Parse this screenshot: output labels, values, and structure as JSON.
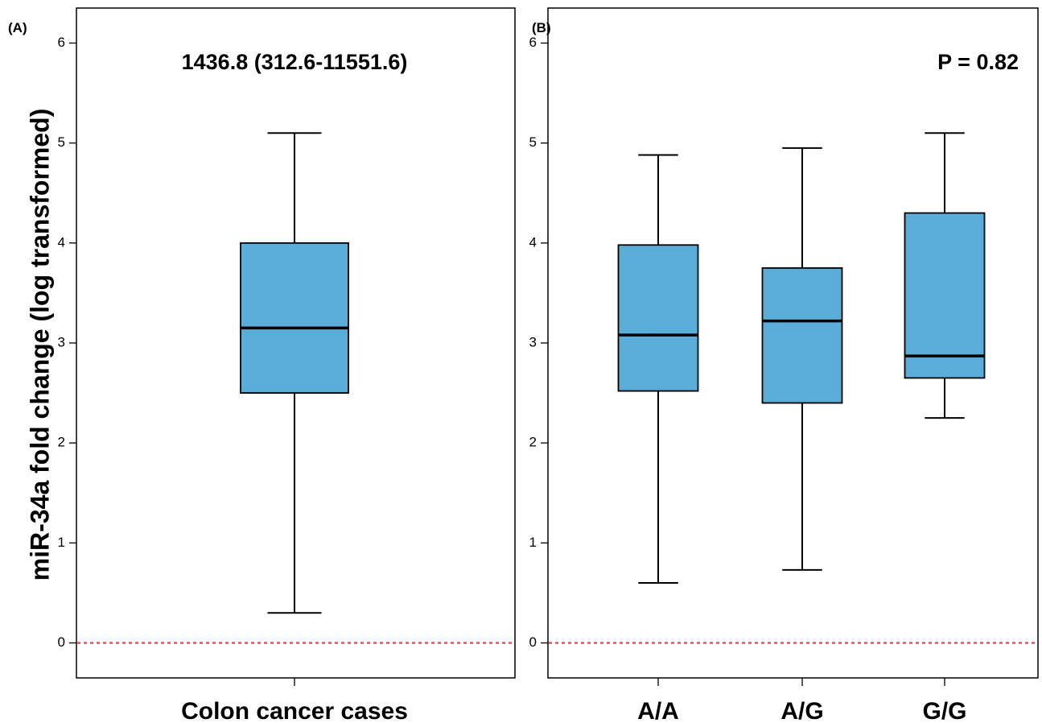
{
  "y_axis_label": "miR-34a fold change (log transformed)",
  "chart_data": [
    {
      "type": "boxplot",
      "panel_label": "(A)",
      "annotation": "1436.8 (312.6-11551.6)",
      "categories": [
        "Colon cancer cases"
      ],
      "boxes": [
        {
          "category": "Colon cancer cases",
          "whisker_low": 0.3,
          "q1": 2.5,
          "median": 3.15,
          "q3": 4.0,
          "whisker_high": 5.1
        }
      ],
      "ylim": [
        -0.35,
        6.35
      ],
      "yticks": [
        0,
        1,
        2,
        3,
        4,
        5,
        6
      ],
      "reference_line": {
        "y": 0,
        "style": "dashed",
        "color": "#e8545a"
      },
      "box_color": "#5badd9"
    },
    {
      "type": "boxplot",
      "panel_label": "(B)",
      "annotation": "P = 0.82",
      "categories": [
        "A/A",
        "A/G",
        "G/G"
      ],
      "boxes": [
        {
          "category": "A/A",
          "whisker_low": 0.6,
          "q1": 2.52,
          "median": 3.08,
          "q3": 3.98,
          "whisker_high": 4.88
        },
        {
          "category": "A/G",
          "whisker_low": 0.73,
          "q1": 2.4,
          "median": 3.22,
          "q3": 3.75,
          "whisker_high": 4.95
        },
        {
          "category": "G/G",
          "whisker_low": 2.25,
          "q1": 2.65,
          "median": 2.87,
          "q3": 4.3,
          "whisker_high": 5.1
        }
      ],
      "ylim": [
        -0.35,
        6.35
      ],
      "yticks": [
        0,
        1,
        2,
        3,
        4,
        5,
        6
      ],
      "reference_line": {
        "y": 0,
        "style": "dashed",
        "color": "#e8545a"
      },
      "box_color": "#5badd9"
    }
  ]
}
